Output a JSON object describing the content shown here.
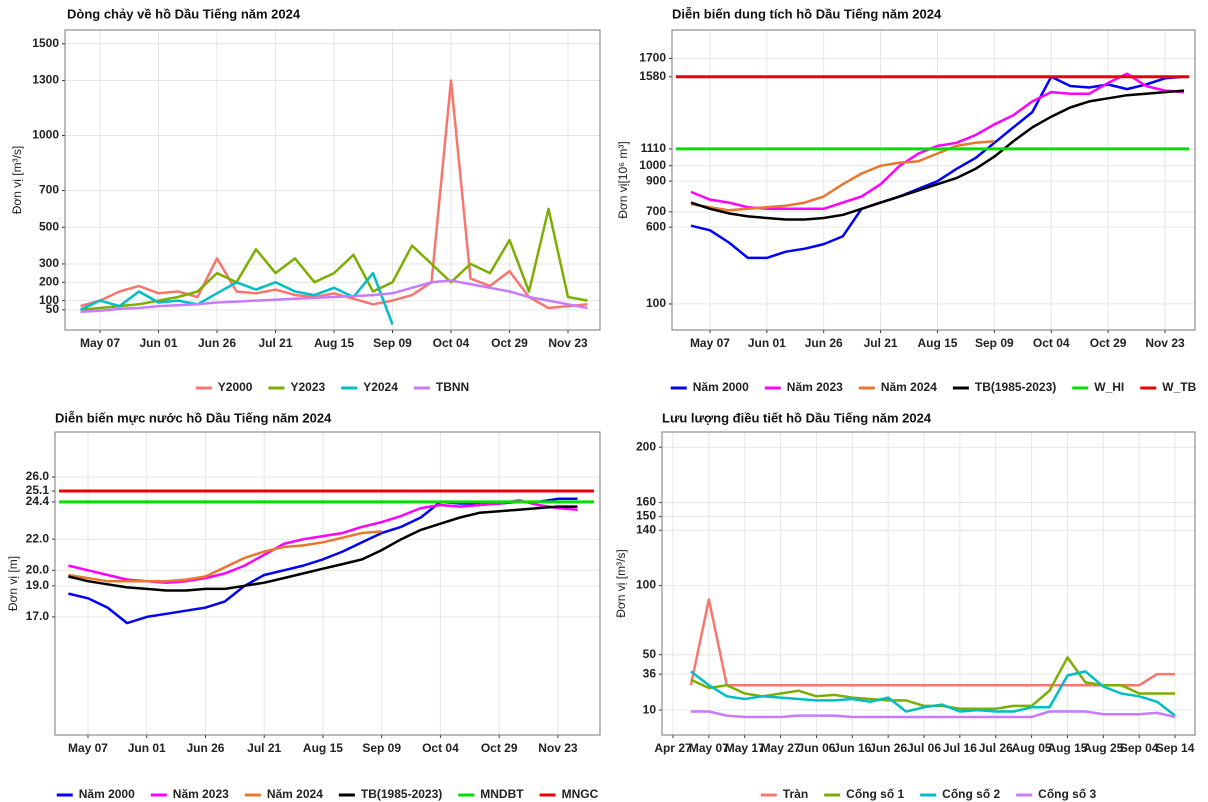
{
  "chart_data": [
    {
      "type": "line",
      "title": "Dòng chảy về hồ Dầu Tiếng năm 2024",
      "y_label": "Đơn vị [m³/s]",
      "categories": [
        null,
        "May 07",
        null,
        null,
        "Jun 01",
        null,
        null,
        "Jun 26",
        null,
        null,
        "Jul 21",
        null,
        null,
        "Aug 15",
        null,
        null,
        "Sep 09",
        null,
        null,
        "Oct 04",
        null,
        null,
        "Oct 29",
        null,
        null,
        "Nov 23",
        null
      ],
      "series": [
        {
          "name": "Y2000",
          "color": "#f8766d",
          "values": [
            70,
            100,
            150,
            180,
            140,
            150,
            120,
            330,
            150,
            140,
            160,
            130,
            120,
            140,
            110,
            80,
            100,
            130,
            200,
            1300,
            220,
            180,
            260,
            120,
            60,
            70,
            80
          ]
        },
        {
          "name": "Y2023",
          "color": "#7cae00",
          "values": [
            50,
            60,
            70,
            80,
            100,
            120,
            150,
            250,
            200,
            380,
            250,
            330,
            200,
            250,
            350,
            150,
            200,
            400,
            300,
            200,
            300,
            250,
            430,
            150,
            600,
            120,
            100
          ]
        },
        {
          "name": "Y2024",
          "color": "#00bfc4",
          "values": [
            50,
            100,
            70,
            150,
            90,
            100,
            80,
            140,
            200,
            160,
            200,
            150,
            130,
            170,
            120,
            250,
            -30,
            null,
            null,
            null,
            null,
            null,
            null,
            null,
            null,
            null,
            null
          ]
        },
        {
          "name": "TBNN",
          "color": "#c77cff",
          "values": [
            40,
            45,
            55,
            60,
            70,
            75,
            80,
            90,
            95,
            100,
            105,
            110,
            115,
            120,
            125,
            130,
            140,
            170,
            200,
            210,
            190,
            170,
            150,
            120,
            100,
            80,
            60
          ]
        }
      ],
      "ylim": [
        -60,
        1575
      ],
      "yticks": [
        50,
        100,
        200,
        300,
        500,
        700,
        1000,
        1300,
        1500
      ],
      "grid": true
    },
    {
      "type": "line",
      "title": "Diễn biến dung tích hồ Dầu Tiếng năm 2024",
      "y_label": "Đơn vị[10⁶ m³]",
      "categories": [
        null,
        "May 07",
        null,
        null,
        "Jun 01",
        null,
        null,
        "Jun 26",
        null,
        null,
        "Jul 21",
        null,
        null,
        "Aug 15",
        null,
        null,
        "Sep 09",
        null,
        null,
        "Oct 04",
        null,
        null,
        "Oct 29",
        null,
        null,
        "Nov 23",
        null
      ],
      "series": [
        {
          "name": "Năm 2000",
          "color": "#0000ff",
          "values": [
            610,
            580,
            500,
            400,
            400,
            440,
            460,
            490,
            540,
            720,
            760,
            800,
            850,
            900,
            980,
            1050,
            1150,
            1250,
            1350,
            1580,
            1520,
            1510,
            1530,
            1500,
            1530,
            1570,
            1580
          ]
        },
        {
          "name": "Năm 2023",
          "color": "#ff00ff",
          "values": [
            830,
            780,
            760,
            730,
            720,
            720,
            720,
            720,
            760,
            800,
            880,
            1000,
            1080,
            1130,
            1150,
            1200,
            1270,
            1330,
            1420,
            1480,
            1470,
            1470,
            1540,
            1600,
            1520,
            1490,
            1480
          ]
        },
        {
          "name": "Năm 2024",
          "color": "#e8772e",
          "values": [
            750,
            730,
            710,
            720,
            730,
            740,
            760,
            800,
            880,
            950,
            1000,
            1020,
            1030,
            1080,
            1130,
            1150,
            1160,
            null,
            null,
            null,
            null,
            null,
            null,
            null,
            null,
            null,
            null
          ]
        },
        {
          "name": "TB(1985-2023)",
          "color": "#000000",
          "values": [
            760,
            720,
            690,
            670,
            660,
            650,
            650,
            660,
            680,
            720,
            760,
            800,
            840,
            880,
            920,
            980,
            1060,
            1160,
            1250,
            1320,
            1380,
            1420,
            1440,
            1460,
            1470,
            1480,
            1490
          ]
        },
        {
          "name": "W_HI",
          "color": "#00e000",
          "value": 1110
        },
        {
          "name": "W_TB",
          "color": "#ee0000",
          "value": 1580
        }
      ],
      "ylim": [
        -70,
        1885
      ],
      "yticks": [
        100,
        600,
        700,
        900,
        1000,
        1110,
        1580,
        1700
      ],
      "grid": true
    },
    {
      "type": "line",
      "title": "Diễn biến mực nước hồ Dầu Tiếng năm 2024",
      "y_label": "Đơn vị [m]",
      "categories": [
        null,
        "May 07",
        null,
        null,
        "Jun 01",
        null,
        null,
        "Jun 26",
        null,
        null,
        "Jul 21",
        null,
        null,
        "Aug 15",
        null,
        null,
        "Sep 09",
        null,
        null,
        "Oct 04",
        null,
        null,
        "Oct 29",
        null,
        null,
        "Nov 23",
        null
      ],
      "series": [
        {
          "name": "Năm 2000",
          "color": "#0000ff",
          "values": [
            18.5,
            18.2,
            17.6,
            16.6,
            17.0,
            17.2,
            17.4,
            17.6,
            18.0,
            19.0,
            19.7,
            20.0,
            20.3,
            20.7,
            21.2,
            21.8,
            22.4,
            22.8,
            23.4,
            24.4,
            24.3,
            24.3,
            24.3,
            24.4,
            24.4,
            24.6,
            24.6
          ]
        },
        {
          "name": "Năm 2023",
          "color": "#ff00ff",
          "values": [
            20.3,
            20.0,
            19.7,
            19.4,
            19.3,
            19.2,
            19.3,
            19.5,
            19.8,
            20.3,
            21.0,
            21.7,
            22.0,
            22.2,
            22.4,
            22.8,
            23.1,
            23.5,
            24.0,
            24.2,
            24.1,
            24.2,
            24.3,
            24.5,
            24.2,
            24.0,
            23.9
          ]
        },
        {
          "name": "Năm 2024",
          "color": "#e8772e",
          "values": [
            19.7,
            19.5,
            19.3,
            19.3,
            19.3,
            19.3,
            19.4,
            19.6,
            20.2,
            20.8,
            21.2,
            21.5,
            21.6,
            21.8,
            22.1,
            22.4,
            22.5,
            null,
            null,
            null,
            null,
            null,
            null,
            null,
            null,
            null,
            null
          ]
        },
        {
          "name": "TB(1985-2023)",
          "color": "#000000",
          "values": [
            19.6,
            19.3,
            19.1,
            18.9,
            18.8,
            18.7,
            18.7,
            18.8,
            18.8,
            19.0,
            19.2,
            19.5,
            19.8,
            20.1,
            20.4,
            20.7,
            21.3,
            22.0,
            22.6,
            23.0,
            23.4,
            23.7,
            23.8,
            23.9,
            24.0,
            24.1,
            24.1
          ]
        },
        {
          "name": "MNDBT",
          "color": "#00e000",
          "value": 24.4
        },
        {
          "name": "MNGC",
          "color": "#ee0000",
          "value": 25.1
        }
      ],
      "ylim": [
        9.4,
        28.9
      ],
      "yticks": [
        {
          "value": 17,
          "label": "17.0"
        },
        {
          "value": 19,
          "label": "19.0"
        },
        {
          "value": 20,
          "label": "20.0"
        },
        {
          "value": 22,
          "label": "22.0"
        },
        24.4,
        25.1,
        {
          "value": 26,
          "label": "26.0"
        }
      ],
      "grid": true
    },
    {
      "type": "line",
      "title": "Lưu lượng điều tiết hồ Dầu Tiếng năm 2024",
      "y_label": "Đơn vị [m³/s]",
      "categories": [
        "Apr 27",
        null,
        "May 07",
        null,
        "May 17",
        null,
        "May 27",
        null,
        "Jun 06",
        null,
        "Jun 16",
        null,
        "Jun 26",
        null,
        "Jul 06",
        null,
        "Jul 16",
        null,
        "Jul 26",
        null,
        "Aug 05",
        null,
        "Aug 15",
        null,
        "Aug 25",
        null,
        "Sep 04",
        null,
        "Sep 14"
      ],
      "series": [
        {
          "name": "Tràn",
          "color": "#f8766d",
          "values": [
            null,
            28,
            90,
            28,
            28,
            28,
            28,
            28,
            28,
            28,
            28,
            28,
            28,
            28,
            28,
            28,
            28,
            28,
            28,
            28,
            28,
            28,
            28,
            28,
            28,
            28,
            28,
            36,
            36
          ]
        },
        {
          "name": "Cống số 1",
          "color": "#7cae00",
          "values": [
            null,
            32,
            26,
            28,
            22,
            20,
            22,
            24,
            20,
            21,
            19,
            18,
            17,
            17,
            13,
            13,
            11,
            11,
            11,
            13,
            13,
            24,
            48,
            30,
            28,
            28,
            22,
            22,
            22
          ]
        },
        {
          "name": "Cống số 2",
          "color": "#00bfc4",
          "values": [
            null,
            38,
            28,
            20,
            18,
            20,
            19,
            18,
            17,
            17,
            18,
            16,
            19,
            9,
            12,
            14,
            9,
            10,
            9,
            9,
            12,
            12,
            35,
            38,
            27,
            22,
            20,
            16,
            6
          ]
        },
        {
          "name": "Cống số 3",
          "color": "#c77cff",
          "values": [
            null,
            9,
            9,
            6,
            5,
            5,
            5,
            6,
            6,
            6,
            5,
            5,
            5,
            5,
            5,
            5,
            5,
            5,
            5,
            5,
            5,
            9,
            9,
            9,
            7,
            7,
            7,
            8,
            5
          ]
        }
      ],
      "ylim": [
        -8,
        211
      ],
      "yticks": [
        10,
        36,
        50,
        100,
        140,
        150,
        160,
        200
      ],
      "grid": true
    }
  ]
}
